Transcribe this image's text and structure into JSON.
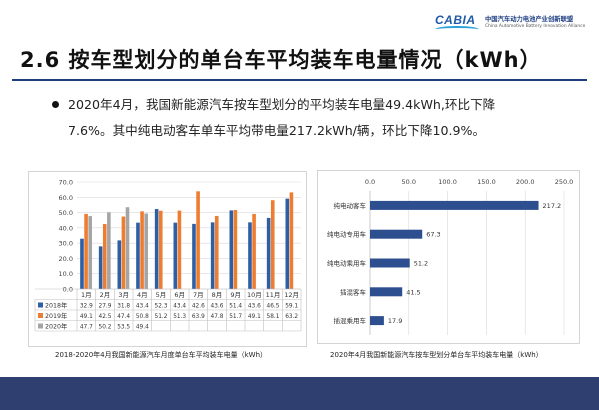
{
  "header": {
    "logo_mark": "CABIA",
    "logo_cn": "中国汽车动力电池产业创新联盟",
    "logo_en": "China Automotive Battery Innovation Alliance"
  },
  "page_title": "2.6 按车型划分的单台车平均装车电量情况（kWh）",
  "bullet": {
    "line1": "2020年4月，我国新能源汽车按车型划分的平均装车电量49.4kWh,环比下降",
    "line2": "7.6%。其中纯电动客车单车平均带电量217.2kWh/辆，环比下降10.9%。"
  },
  "chart_data": [
    {
      "type": "bar",
      "categories": [
        "1月",
        "2月",
        "3月",
        "4月",
        "5月",
        "6月",
        "7月",
        "8月",
        "9月",
        "10月",
        "11月",
        "12月"
      ],
      "series": [
        {
          "name": "2018年",
          "color": "#2e5fa3",
          "values": [
            32.9,
            27.9,
            31.8,
            43.4,
            52.3,
            43.4,
            42.6,
            43.6,
            51.4,
            43.6,
            46.5,
            59.1
          ]
        },
        {
          "name": "2019年",
          "color": "#ed7d31",
          "values": [
            49.1,
            42.5,
            47.4,
            50.8,
            51.2,
            51.3,
            63.9,
            47.8,
            51.7,
            49.1,
            58.1,
            63.2
          ]
        },
        {
          "name": "2020年",
          "color": "#a5a5a5",
          "values": [
            47.7,
            50.2,
            53.5,
            49.4,
            null,
            null,
            null,
            null,
            null,
            null,
            null,
            null
          ]
        }
      ],
      "table_rows": [
        [
          "32.9",
          "27.9",
          "31.8",
          "43.4",
          "52.3",
          "43.4",
          "42.6",
          "43.6",
          "51.4",
          "43.6",
          "46.5",
          "59.1"
        ],
        [
          "49.1",
          "42.5",
          "47.4",
          "50.8",
          "51.2",
          "51.3",
          "63.9",
          "47.8",
          "51.7",
          "49.1",
          "58.1",
          "63.2"
        ],
        [
          "47.7",
          "50.2",
          "53.5",
          "49.4",
          "",
          "",
          "",
          "",
          "",
          "",
          "",
          ""
        ]
      ],
      "yticks": [
        "0.0",
        "10.0",
        "20.0",
        "30.0",
        "40.0",
        "50.0",
        "60.0",
        "70.0"
      ],
      "ylim": [
        0,
        70
      ],
      "grid": true,
      "legend": "data-table",
      "caption": "2018-2020年4月我国新能源汽车月度单台车平均装车电量（kWh）"
    },
    {
      "type": "bar",
      "orientation": "horizontal",
      "categories": [
        "纯电动客车",
        "纯电动专用车",
        "纯电动乘用车",
        "插混客车",
        "插混乘用车"
      ],
      "values": [
        217.2,
        67.3,
        51.2,
        41.5,
        17.9
      ],
      "value_labels": [
        "217.2",
        "67.3",
        "51.2",
        "41.5",
        "17.9"
      ],
      "color": "#2e4f8f",
      "xticks": [
        "0.0",
        "50.0",
        "100.0",
        "150.0",
        "200.0",
        "250.0"
      ],
      "xlim": [
        0,
        250
      ],
      "grid": true,
      "caption": "2020年4月我国新能源汽车按车型划分单台车平均装车电量（kWh）"
    }
  ]
}
